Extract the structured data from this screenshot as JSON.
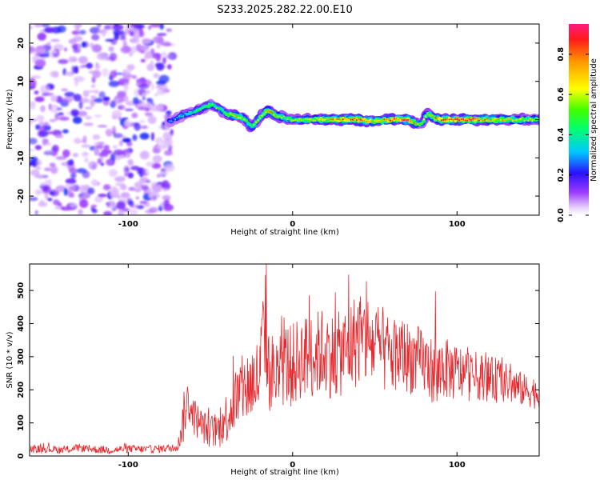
{
  "title": "S233.2025.282.22.00.E10",
  "chart_data": [
    {
      "type": "heatmap",
      "name": "spectrogram",
      "xlabel": "Height of straight line (km)",
      "ylabel": "Frequency (Hz)",
      "xlim": [
        -160,
        150
      ],
      "ylim": [
        -25,
        25
      ],
      "xticks": [
        "-100",
        "0",
        "100"
      ],
      "yticks": [
        "-20",
        "-10",
        "0",
        "10",
        "20"
      ],
      "colorbar": {
        "label": "Normalized spectral amplitude",
        "range": [
          0,
          0.95
        ],
        "ticks": [
          "0.0",
          "0.2",
          "0.4",
          "0.6",
          "0.8"
        ]
      },
      "noise_region_x": [
        -160,
        -75
      ],
      "ridge": {
        "x": [
          -75,
          -70,
          -65,
          -60,
          -55,
          -50,
          -45,
          -40,
          -35,
          -30,
          -25,
          -22,
          -18,
          -15,
          -10,
          -5,
          0,
          10,
          20,
          30,
          40,
          50,
          60,
          70,
          78,
          82,
          86,
          90,
          100,
          110,
          120,
          130,
          140,
          150
        ],
        "y": [
          -0.5,
          0.5,
          1.5,
          2.0,
          3.0,
          4.0,
          3.0,
          1.5,
          1.0,
          0.5,
          -2.0,
          -0.5,
          1.5,
          2.5,
          1.0,
          0.5,
          0.0,
          0.0,
          0.0,
          0.0,
          0.0,
          -0.5,
          0.0,
          0.0,
          -1.5,
          1.5,
          0.5,
          0.0,
          0.0,
          0.0,
          0.0,
          0.0,
          0.0,
          0.0
        ],
        "amplitude": [
          0.3,
          0.35,
          0.4,
          0.45,
          0.5,
          0.55,
          0.5,
          0.55,
          0.75,
          0.6,
          0.55,
          0.6,
          0.65,
          0.8,
          0.7,
          0.55,
          0.6,
          0.65,
          0.75,
          0.85,
          0.95,
          0.75,
          0.85,
          0.9,
          0.6,
          0.65,
          0.75,
          0.85,
          0.95,
          0.9,
          0.8,
          0.7,
          0.65,
          0.6
        ]
      }
    },
    {
      "type": "line",
      "name": "snr",
      "xlabel": "Height of straight line (km)",
      "ylabel": "SNR (10 * v/v)",
      "xlim": [
        -160,
        150
      ],
      "ylim": [
        0,
        580
      ],
      "xticks": [
        "-100",
        "0",
        "100"
      ],
      "yticks": [
        "0",
        "100",
        "200",
        "300",
        "400",
        "500"
      ],
      "color": "#e8262b",
      "series": [
        {
          "name": "SNR",
          "x": [
            -160,
            -150,
            -140,
            -130,
            -120,
            -110,
            -100,
            -90,
            -80,
            -70,
            -66,
            -64,
            -60,
            -55,
            -50,
            -45,
            -40,
            -35,
            -30,
            -25,
            -20,
            -17,
            -15,
            -10,
            -5,
            0,
            5,
            10,
            15,
            20,
            25,
            30,
            35,
            40,
            45,
            50,
            55,
            60,
            65,
            70,
            75,
            80,
            85,
            88,
            90,
            95,
            100,
            105,
            110,
            115,
            120,
            125,
            130,
            135,
            140,
            145,
            150
          ],
          "y": [
            20,
            22,
            18,
            25,
            20,
            18,
            22,
            20,
            22,
            25,
            120,
            170,
            120,
            90,
            75,
            80,
            120,
            170,
            200,
            220,
            240,
            420,
            260,
            240,
            280,
            270,
            300,
            300,
            310,
            320,
            300,
            310,
            330,
            360,
            350,
            330,
            320,
            300,
            310,
            300,
            290,
            280,
            260,
            220,
            270,
            260,
            250,
            250,
            240,
            240,
            230,
            230,
            220,
            210,
            200,
            195,
            190
          ],
          "spread": [
            12,
            12,
            12,
            12,
            12,
            12,
            12,
            12,
            12,
            12,
            80,
            60,
            60,
            50,
            50,
            60,
            80,
            100,
            110,
            120,
            130,
            180,
            130,
            120,
            130,
            130,
            130,
            130,
            130,
            140,
            130,
            130,
            140,
            150,
            150,
            140,
            130,
            120,
            120,
            110,
            110,
            100,
            100,
            100,
            100,
            90,
            90,
            80,
            80,
            70,
            70,
            70,
            60,
            60,
            50,
            50,
            50
          ],
          "peaks": [
            {
              "x": -16,
              "y": 580
            },
            {
              "x": 34,
              "y": 548
            },
            {
              "x": 45,
              "y": 528
            },
            {
              "x": 87,
              "y": 497
            },
            {
              "x": 26,
              "y": 495
            },
            {
              "x": 10,
              "y": 485
            }
          ]
        }
      ]
    }
  ]
}
